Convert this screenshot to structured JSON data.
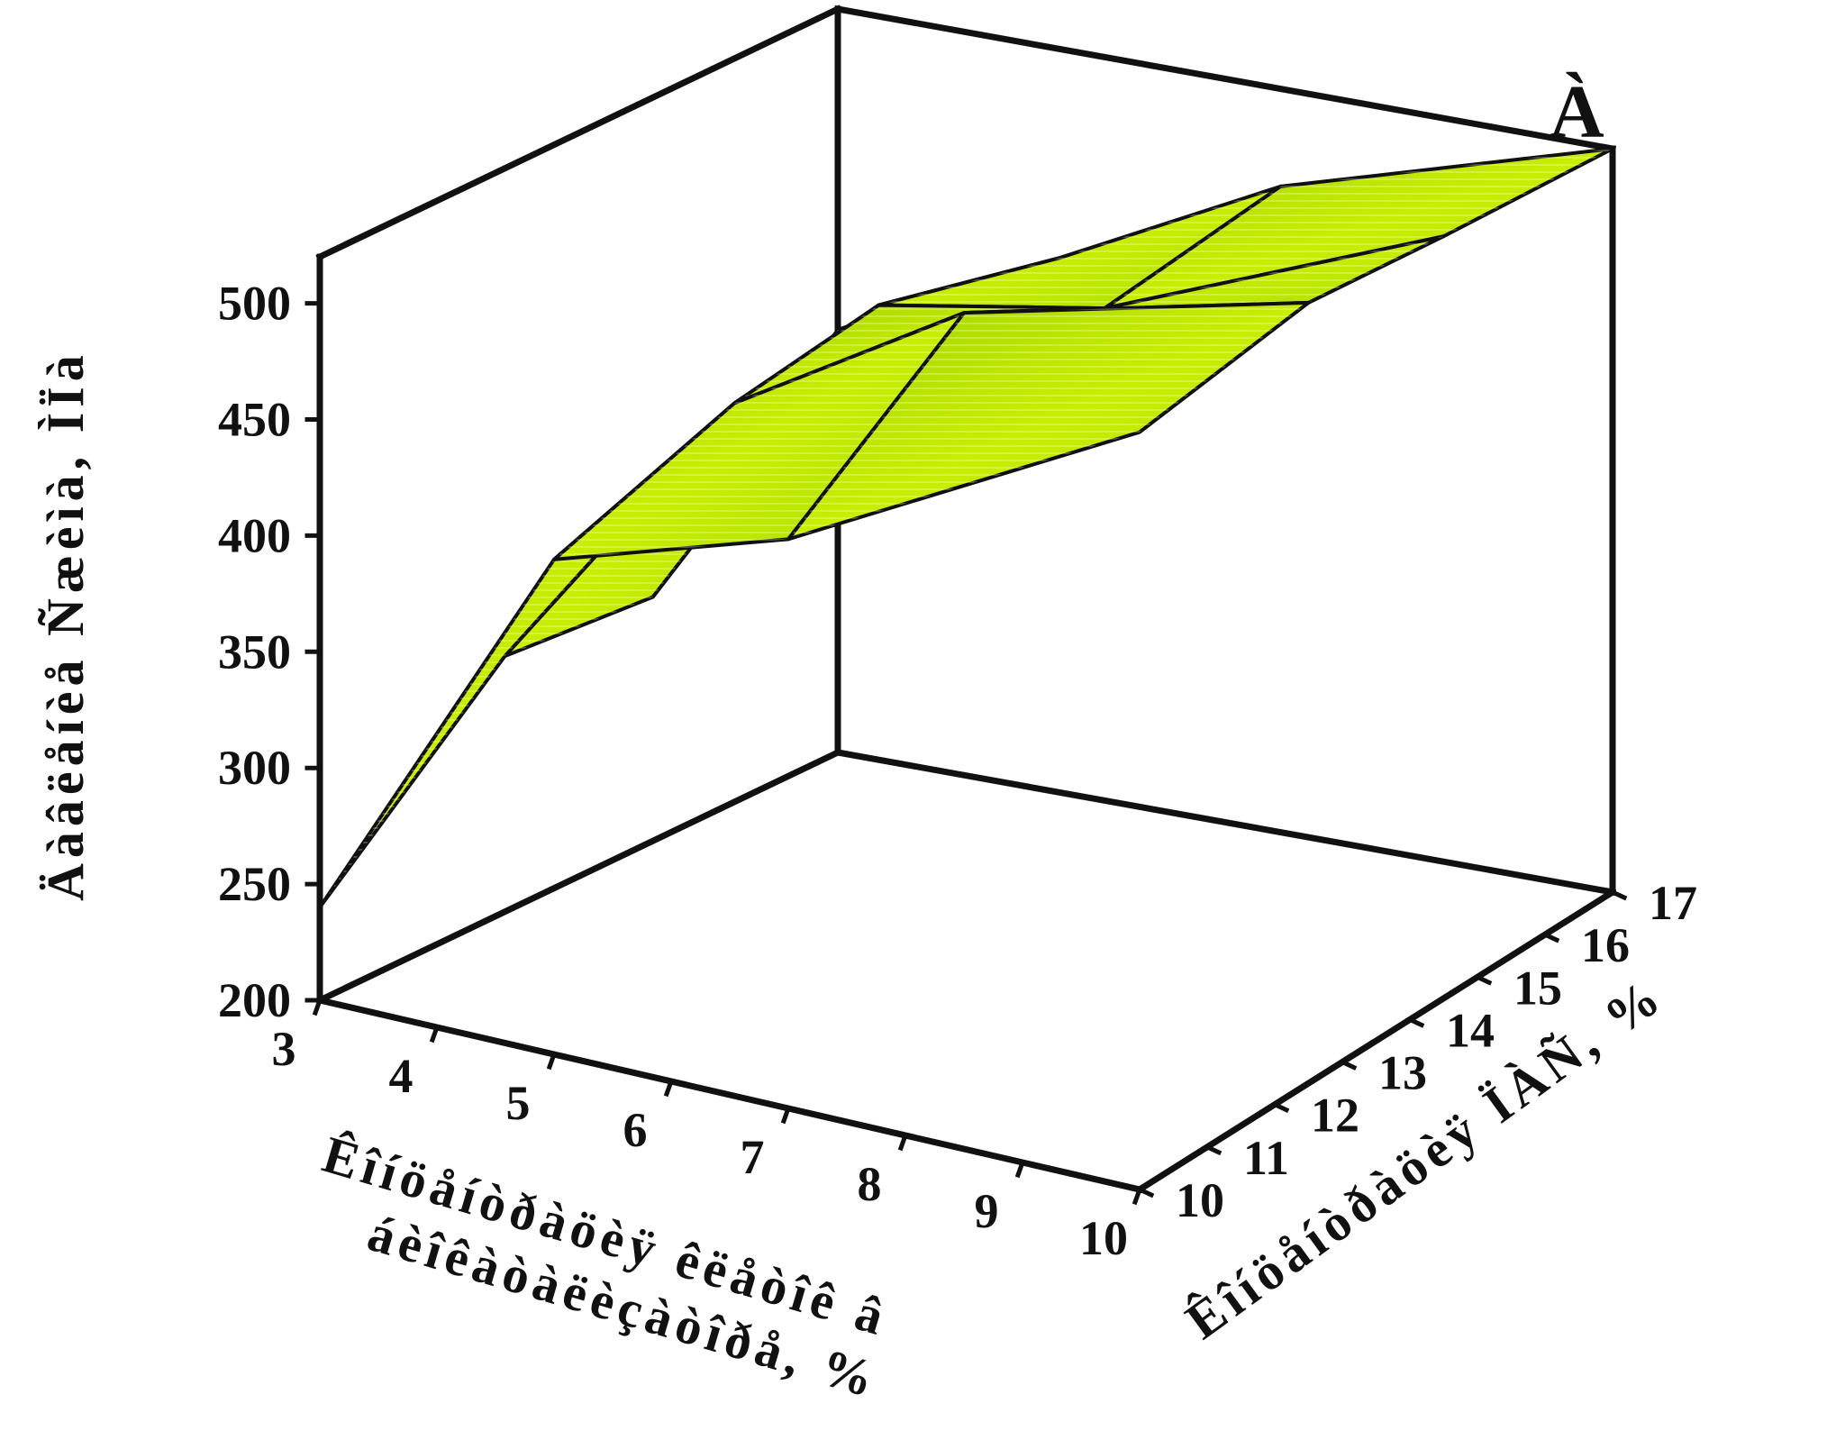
{
  "chart_data": {
    "type": "surface3d",
    "panel_label": "À",
    "zlabel": "Äàâëåíèå Ñæèìà, ÌÏà",
    "xlabel_line1": "Êîíöåíòðàöèÿ êëåòîê â",
    "xlabel_line2": "áèîêàòàëèçàòîðå, %",
    "ylabel": "Êîíöåíòðàöèÿ ÏÀÑ, %",
    "x_ticks": [
      "3",
      "4",
      "5",
      "6",
      "7",
      "8",
      "9",
      "10"
    ],
    "y_ticks": [
      "10",
      "11",
      "12",
      "13",
      "14",
      "15",
      "16",
      "17"
    ],
    "z_ticks": [
      "200",
      "250",
      "300",
      "350",
      "400",
      "450",
      "500"
    ],
    "xlim": [
      3,
      10
    ],
    "ylim": [
      10,
      17
    ],
    "zlim": [
      200,
      520
    ],
    "x": [
      3,
      5,
      7,
      10
    ],
    "y": [
      17,
      14.5,
      12.5,
      10
    ],
    "z": [
      [
        382,
        430,
        478,
        520
      ],
      [
        305,
        450,
        468,
        528
      ],
      [
        310,
        440,
        500,
        536
      ],
      [
        240,
        413,
        445,
        526
      ]
    ],
    "surface_color": "#b8e000",
    "wire_color": "#101010",
    "grid": false
  }
}
